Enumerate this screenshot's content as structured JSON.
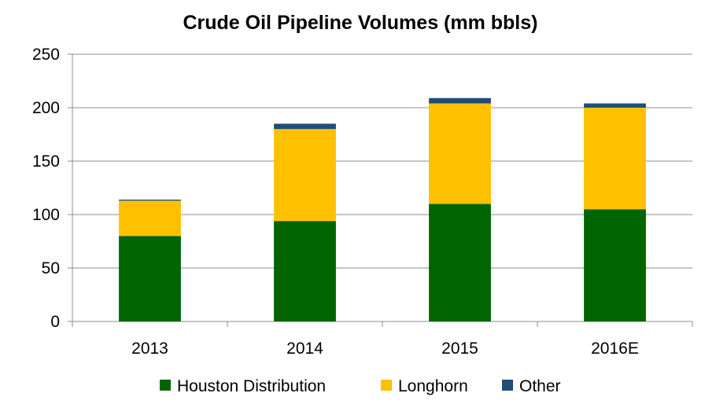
{
  "chart_data": {
    "type": "bar",
    "stacked": true,
    "title": "Crude Oil Pipeline Volumes (mm bbls)",
    "xlabel": "",
    "ylabel": "",
    "categories": [
      "2013",
      "2014",
      "2015",
      "2016E"
    ],
    "series": [
      {
        "name": "Houston Distribution",
        "color": "#006400",
        "values": [
          80,
          94,
          110,
          105
        ]
      },
      {
        "name": "Longhorn",
        "color": "#ffc000",
        "values": [
          33,
          86,
          94,
          95
        ]
      },
      {
        "name": "Other",
        "color": "#1f4e79",
        "values": [
          1,
          5,
          5,
          4
        ]
      }
    ],
    "ylim": [
      0,
      250
    ],
    "yticks": [
      0,
      50,
      100,
      150,
      200,
      250
    ],
    "grid": true,
    "legend": "bottom"
  }
}
